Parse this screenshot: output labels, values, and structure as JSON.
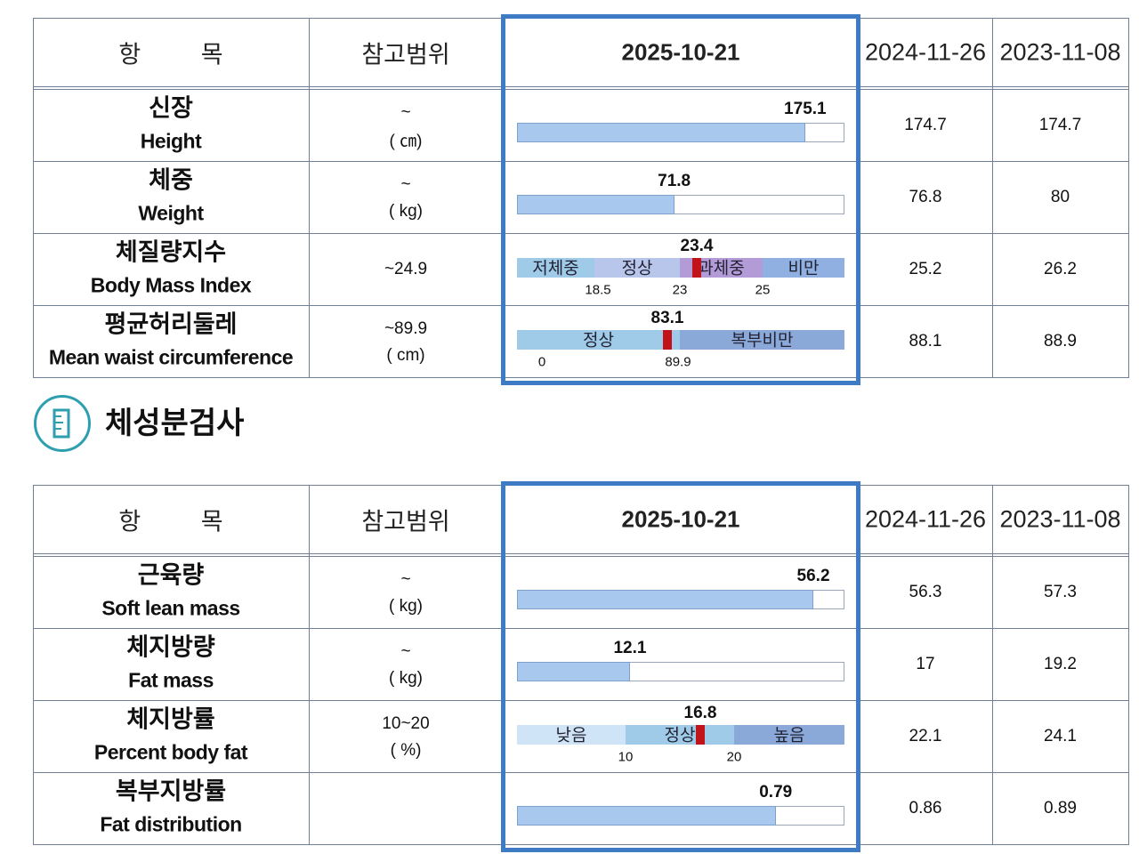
{
  "table1": {
    "header": [
      "항 목",
      "참고범위",
      "2025-10-21",
      "2024-11-26",
      "2023-11-08"
    ],
    "rows": [
      {
        "name_ko": "신장",
        "name_en": "Height",
        "range": [
          "~",
          "( ㎝)"
        ],
        "current": 175.1,
        "previous": [
          174.7,
          174.7
        ]
      },
      {
        "name_ko": "체중",
        "name_en": "Weight",
        "range": [
          "~",
          "( kg)"
        ],
        "current": 71.8,
        "previous": [
          76.8,
          80
        ]
      },
      {
        "name_ko": "체질량지수",
        "name_en": "Body Mass Index",
        "range": [
          "~24.9"
        ],
        "current": 23.4,
        "previous": [
          25.2,
          26.2
        ],
        "scale": {
          "segments": [
            "저체중",
            "정상",
            "과체중",
            "비만"
          ],
          "ticks": [
            18.5,
            23,
            25
          ]
        }
      },
      {
        "name_ko": "평균허리둘레",
        "name_en": "Mean waist circumference",
        "range": [
          "~89.9",
          "( cm)"
        ],
        "current": 83.1,
        "previous": [
          88.1,
          88.9
        ],
        "scale": {
          "segments": [
            "정상",
            "복부비만"
          ],
          "ticks": [
            0,
            89.9
          ]
        }
      }
    ]
  },
  "section_title": "체성분검사",
  "table2": {
    "header": [
      "항 목",
      "참고범위",
      "2025-10-21",
      "2024-11-26",
      "2023-11-08"
    ],
    "rows": [
      {
        "name_ko": "근육량",
        "name_en": "Soft lean mass",
        "range": [
          "~",
          "( kg)"
        ],
        "current": 56.2,
        "previous": [
          56.3,
          57.3
        ]
      },
      {
        "name_ko": "체지방량",
        "name_en": "Fat mass",
        "range": [
          "~",
          "( kg)"
        ],
        "current": 12.1,
        "previous": [
          17,
          19.2
        ]
      },
      {
        "name_ko": "체지방률",
        "name_en": "Percent body fat",
        "range": [
          "10~20",
          "( %)"
        ],
        "current": 16.8,
        "previous": [
          22.1,
          24.1
        ],
        "scale": {
          "segments": [
            "낮음",
            "정상",
            "높음"
          ],
          "ticks": [
            10,
            20
          ]
        }
      },
      {
        "name_ko": "복부지방률",
        "name_en": "Fat distribution",
        "range": [],
        "current": 0.79,
        "previous": [
          0.86,
          0.89
        ]
      }
    ]
  }
}
